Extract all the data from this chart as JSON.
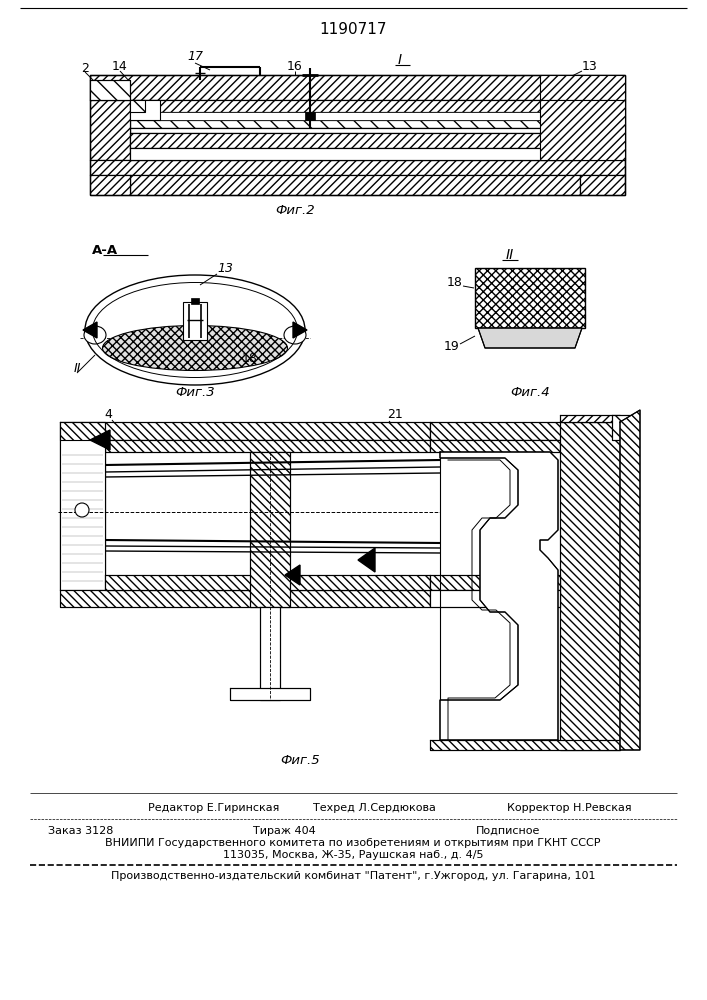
{
  "patent_number": "1190717",
  "background_color": "#ffffff",
  "fig2_label": "Фиг.2",
  "fig3_label": "Фиг.3",
  "fig4_label": "Фиг.4",
  "fig5_label": "Фиг.5",
  "footer_editor": "Редактор Е.Гиринская",
  "footer_tech": "Техред Л.Сердюкова",
  "footer_corr": "Корректор Н.Ревская",
  "footer_order": "Заказ 3128",
  "footer_tirazh": "Тираж 404",
  "footer_podp": "Подписное",
  "footer_vniip": "ВНИИПИ Государственного комитета по изобретениям и открытиям при ГКНТ СССР",
  "footer_addr": "113035, Москва, Ж-35, Раушская наб., д. 4/5",
  "footer_patent": "Производственно-издательский комбинат \"Патент\", г.Ужгород, ул. Гагарина, 101",
  "figsize": [
    7.07,
    10.0
  ],
  "dpi": 100
}
